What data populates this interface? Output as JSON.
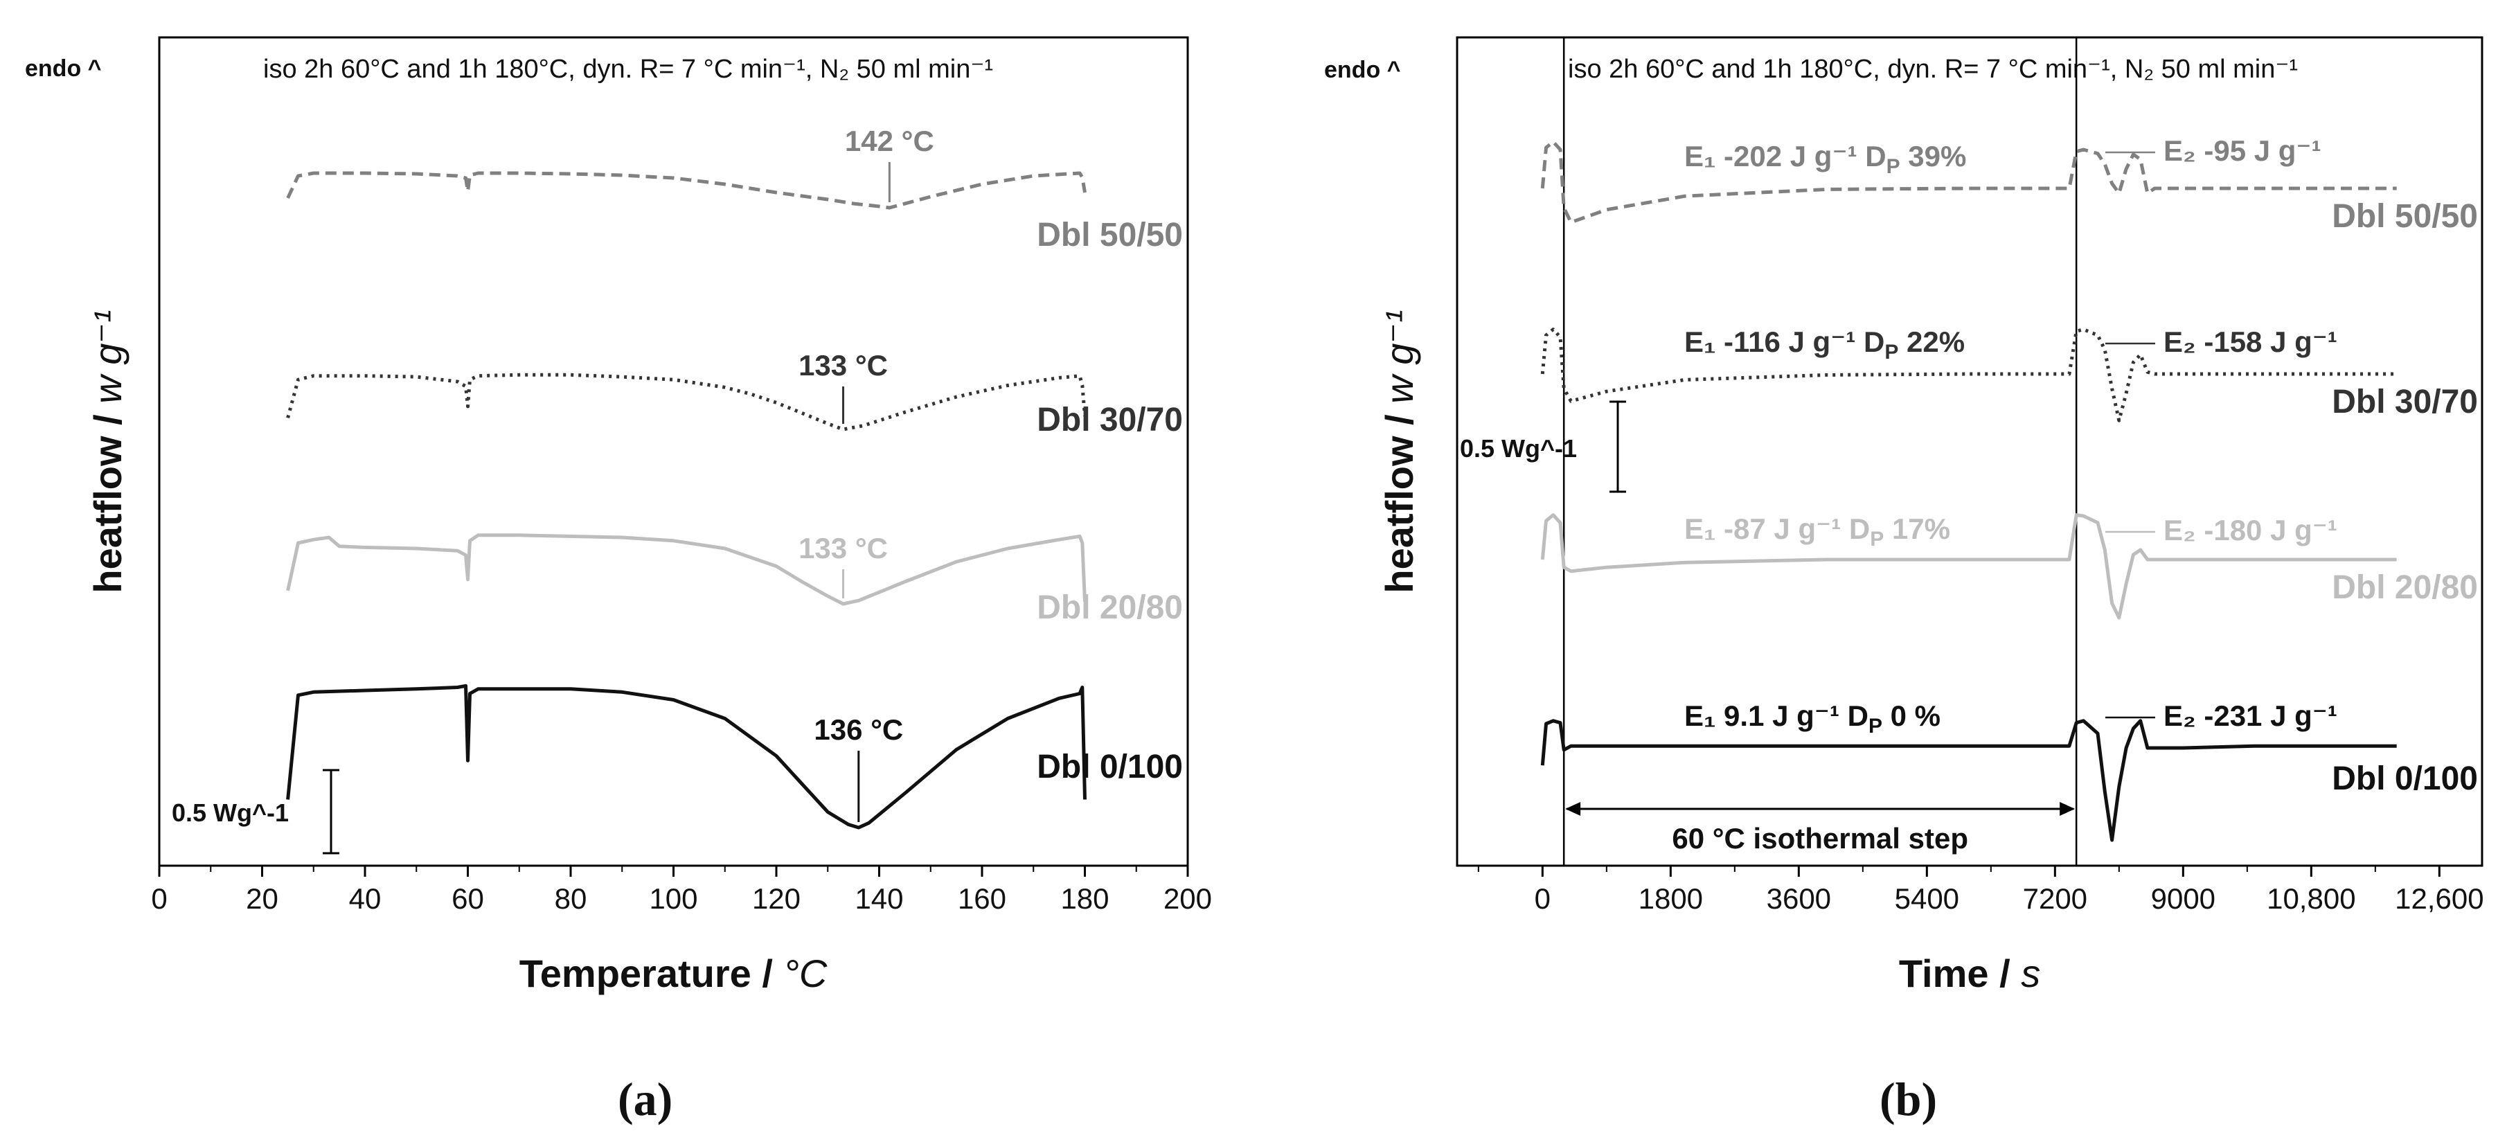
{
  "chart_data": [
    {
      "type": "line",
      "panel_label": "(a)",
      "corner_label": "endo ^",
      "conditions": "iso 2h 60°C and 1h 180°C, dyn. R= 7 °C min⁻¹, N₂ 50 ml min⁻¹",
      "xlabel_main": "Temperature / ",
      "xlabel_unit": "°C",
      "ylabel_main": "heatflow / ",
      "ylabel_unit": "w g⁻¹",
      "xlim": [
        0,
        200
      ],
      "xticks": [
        "0",
        "20",
        "40",
        "60",
        "80",
        "100",
        "120",
        "140",
        "160",
        "180",
        "200"
      ],
      "scale_bar": "0.5 Wg^-1",
      "series": [
        {
          "name": "Dbl 50/50",
          "color": "#808080",
          "dash": "dashed",
          "peak_label": "142 °C",
          "peak_x": 142,
          "x": [
            25,
            27,
            30,
            40,
            50,
            58,
            59.6,
            60,
            60.4,
            62,
            70,
            80,
            90,
            100,
            110,
            120,
            130,
            135,
            140,
            142,
            144,
            150,
            160,
            170,
            179,
            179.5,
            180
          ],
          "y": [
            0.14,
            0.46,
            0.5,
            0.5,
            0.49,
            0.46,
            0.43,
            0.24,
            0.47,
            0.5,
            0.5,
            0.49,
            0.47,
            0.43,
            0.34,
            0.22,
            0.12,
            0.06,
            0.02,
            0.0,
            0.04,
            0.16,
            0.34,
            0.46,
            0.5,
            0.44,
            0.22
          ]
        },
        {
          "name": "Dbl 30/70",
          "color": "#333333",
          "dash": "dotted",
          "peak_label": "133 °C",
          "peak_x": 133,
          "x": [
            25,
            27,
            30,
            40,
            50,
            58,
            59.6,
            60,
            60.4,
            62,
            70,
            80,
            90,
            100,
            110,
            115,
            120,
            125,
            130,
            133,
            137,
            145,
            155,
            165,
            175,
            179,
            179.5,
            180
          ],
          "y": [
            0.12,
            0.52,
            0.56,
            0.56,
            0.55,
            0.5,
            0.45,
            0.24,
            0.52,
            0.56,
            0.57,
            0.57,
            0.55,
            0.52,
            0.44,
            0.37,
            0.28,
            0.17,
            0.06,
            0.0,
            0.04,
            0.18,
            0.34,
            0.46,
            0.54,
            0.56,
            0.46,
            0.14
          ]
        },
        {
          "name": "Dbl 20/80",
          "color": "#bdbdbd",
          "dash": "solid",
          "peak_label": "133 °C",
          "peak_x": 133,
          "x": [
            25,
            27,
            30,
            33,
            35,
            40,
            50,
            58,
            59.6,
            60,
            60.4,
            62,
            70,
            80,
            90,
            100,
            110,
            120,
            125,
            130,
            133,
            136,
            145,
            155,
            165,
            175,
            179,
            179.5,
            180
          ],
          "y": [
            0.12,
            0.55,
            0.58,
            0.6,
            0.52,
            0.51,
            0.5,
            0.48,
            0.44,
            0.22,
            0.57,
            0.62,
            0.62,
            0.61,
            0.6,
            0.57,
            0.5,
            0.34,
            0.2,
            0.07,
            0.0,
            0.03,
            0.2,
            0.38,
            0.5,
            0.58,
            0.61,
            0.55,
            0.02
          ]
        },
        {
          "name": "Dbl 0/100",
          "color": "#111111",
          "dash": "solid",
          "peak_label": "136 °C",
          "peak_x": 136,
          "x": [
            25,
            27,
            30,
            40,
            50,
            58,
            59.6,
            60,
            60.4,
            62,
            70,
            80,
            90,
            100,
            110,
            120,
            125,
            130,
            134,
            136,
            138,
            145,
            155,
            165,
            175,
            179,
            179.5,
            180
          ],
          "y": [
            0.18,
            0.85,
            0.87,
            0.88,
            0.89,
            0.9,
            0.91,
            0.43,
            0.86,
            0.89,
            0.89,
            0.89,
            0.87,
            0.82,
            0.7,
            0.46,
            0.28,
            0.1,
            0.02,
            0.0,
            0.03,
            0.22,
            0.5,
            0.7,
            0.83,
            0.86,
            0.9,
            0.18
          ]
        }
      ]
    },
    {
      "type": "line",
      "panel_label": "(b)",
      "corner_label": "endo ^",
      "conditions": "iso 2h 60°C and 1h 180°C, dyn. R= 7 °C min⁻¹, N₂ 50 ml min⁻¹",
      "xlabel_main": "Time / ",
      "xlabel_unit": "s",
      "ylabel_main": "heatflow / ",
      "ylabel_unit": "w g⁻¹",
      "xlim": [
        -1200,
        13200
      ],
      "xticks": [
        "0",
        "1800",
        "3600",
        "5400",
        "7200",
        "9000",
        "10,800",
        "12,600"
      ],
      "isothermal_label": "60 °C isothermal step",
      "isothermal_range": [
        300,
        7500
      ],
      "scale_bar": "0.5 Wg^-1",
      "series": [
        {
          "name": "Dbl 50/50",
          "color": "#808080",
          "dash": "dashed",
          "E1": "E₁ -202 J g⁻¹  D",
          "E1_sub": "P",
          "E1_pct": " 39%",
          "E2": "E₂ -95 J g⁻¹",
          "x": [
            0,
            50,
            150,
            250,
            300,
            400,
            900,
            2000,
            4000,
            6000,
            7400,
            7500,
            7600,
            7800,
            7900,
            8000,
            8100,
            8200,
            8300,
            8400,
            8500,
            8600,
            9000,
            10000,
            12000
          ],
          "y": [
            0.0,
            0.42,
            0.48,
            0.4,
            -0.2,
            -0.35,
            -0.22,
            -0.08,
            -0.01,
            0.0,
            0.0,
            0.38,
            0.4,
            0.36,
            0.25,
            0.05,
            -0.05,
            0.2,
            0.35,
            0.3,
            -0.05,
            0.0,
            0.0,
            0.0,
            0.0
          ]
        },
        {
          "name": "Dbl 30/70",
          "color": "#333333",
          "dash": "dotted",
          "E1": "E₁ -116 J g⁻¹  D",
          "E1_sub": "P",
          "E1_pct": " 22%",
          "E2": "E₂ -158 J g⁻¹",
          "x": [
            0,
            50,
            150,
            250,
            300,
            400,
            900,
            2000,
            4000,
            6000,
            7400,
            7500,
            7600,
            7800,
            7900,
            8000,
            8100,
            8200,
            8300,
            8400,
            8500,
            8600,
            9000,
            10000,
            12000
          ],
          "y": [
            0.0,
            0.4,
            0.46,
            0.38,
            -0.15,
            -0.28,
            -0.18,
            -0.06,
            -0.01,
            0.0,
            0.0,
            0.44,
            0.46,
            0.4,
            0.25,
            -0.15,
            -0.48,
            -0.2,
            0.12,
            0.2,
            0.02,
            0.0,
            0.0,
            0.0,
            0.0
          ]
        },
        {
          "name": "Dbl 20/80",
          "color": "#bdbdbd",
          "dash": "solid",
          "E1": "E₁ -87 J g⁻¹  D",
          "E1_sub": "P",
          "E1_pct": " 17%",
          "E2": "E₂ -180 J g⁻¹",
          "x": [
            0,
            50,
            150,
            250,
            300,
            400,
            900,
            2000,
            4000,
            6000,
            7400,
            7500,
            7600,
            7800,
            7900,
            8000,
            8100,
            8200,
            8300,
            8400,
            8500,
            8600,
            9000,
            10000,
            12000
          ],
          "y": [
            0.0,
            0.4,
            0.46,
            0.38,
            -0.08,
            -0.12,
            -0.08,
            -0.03,
            0.0,
            0.0,
            0.0,
            0.46,
            0.45,
            0.38,
            0.1,
            -0.45,
            -0.6,
            -0.25,
            0.05,
            0.1,
            0.0,
            0.0,
            0.0,
            0.0,
            0.0
          ]
        },
        {
          "name": "Dbl 0/100",
          "color": "#111111",
          "dash": "solid",
          "E1": "E₁ 9.1 J g⁻¹  D",
          "E1_sub": "P",
          "E1_pct": " 0 %",
          "E2": "E₂ -231 J g⁻¹",
          "x": [
            0,
            50,
            150,
            250,
            300,
            400,
            900,
            2000,
            4000,
            6000,
            7400,
            7500,
            7600,
            7800,
            7900,
            8000,
            8100,
            8200,
            8300,
            8400,
            8500,
            8600,
            9000,
            10000,
            12000
          ],
          "y": [
            -0.18,
            0.25,
            0.28,
            0.26,
            -0.02,
            0.02,
            0.02,
            0.02,
            0.02,
            0.02,
            0.02,
            0.26,
            0.28,
            0.15,
            -0.45,
            -0.95,
            -0.4,
            0.0,
            0.2,
            0.28,
            0.0,
            0.0,
            0.0,
            0.02,
            0.02
          ]
        }
      ]
    }
  ]
}
